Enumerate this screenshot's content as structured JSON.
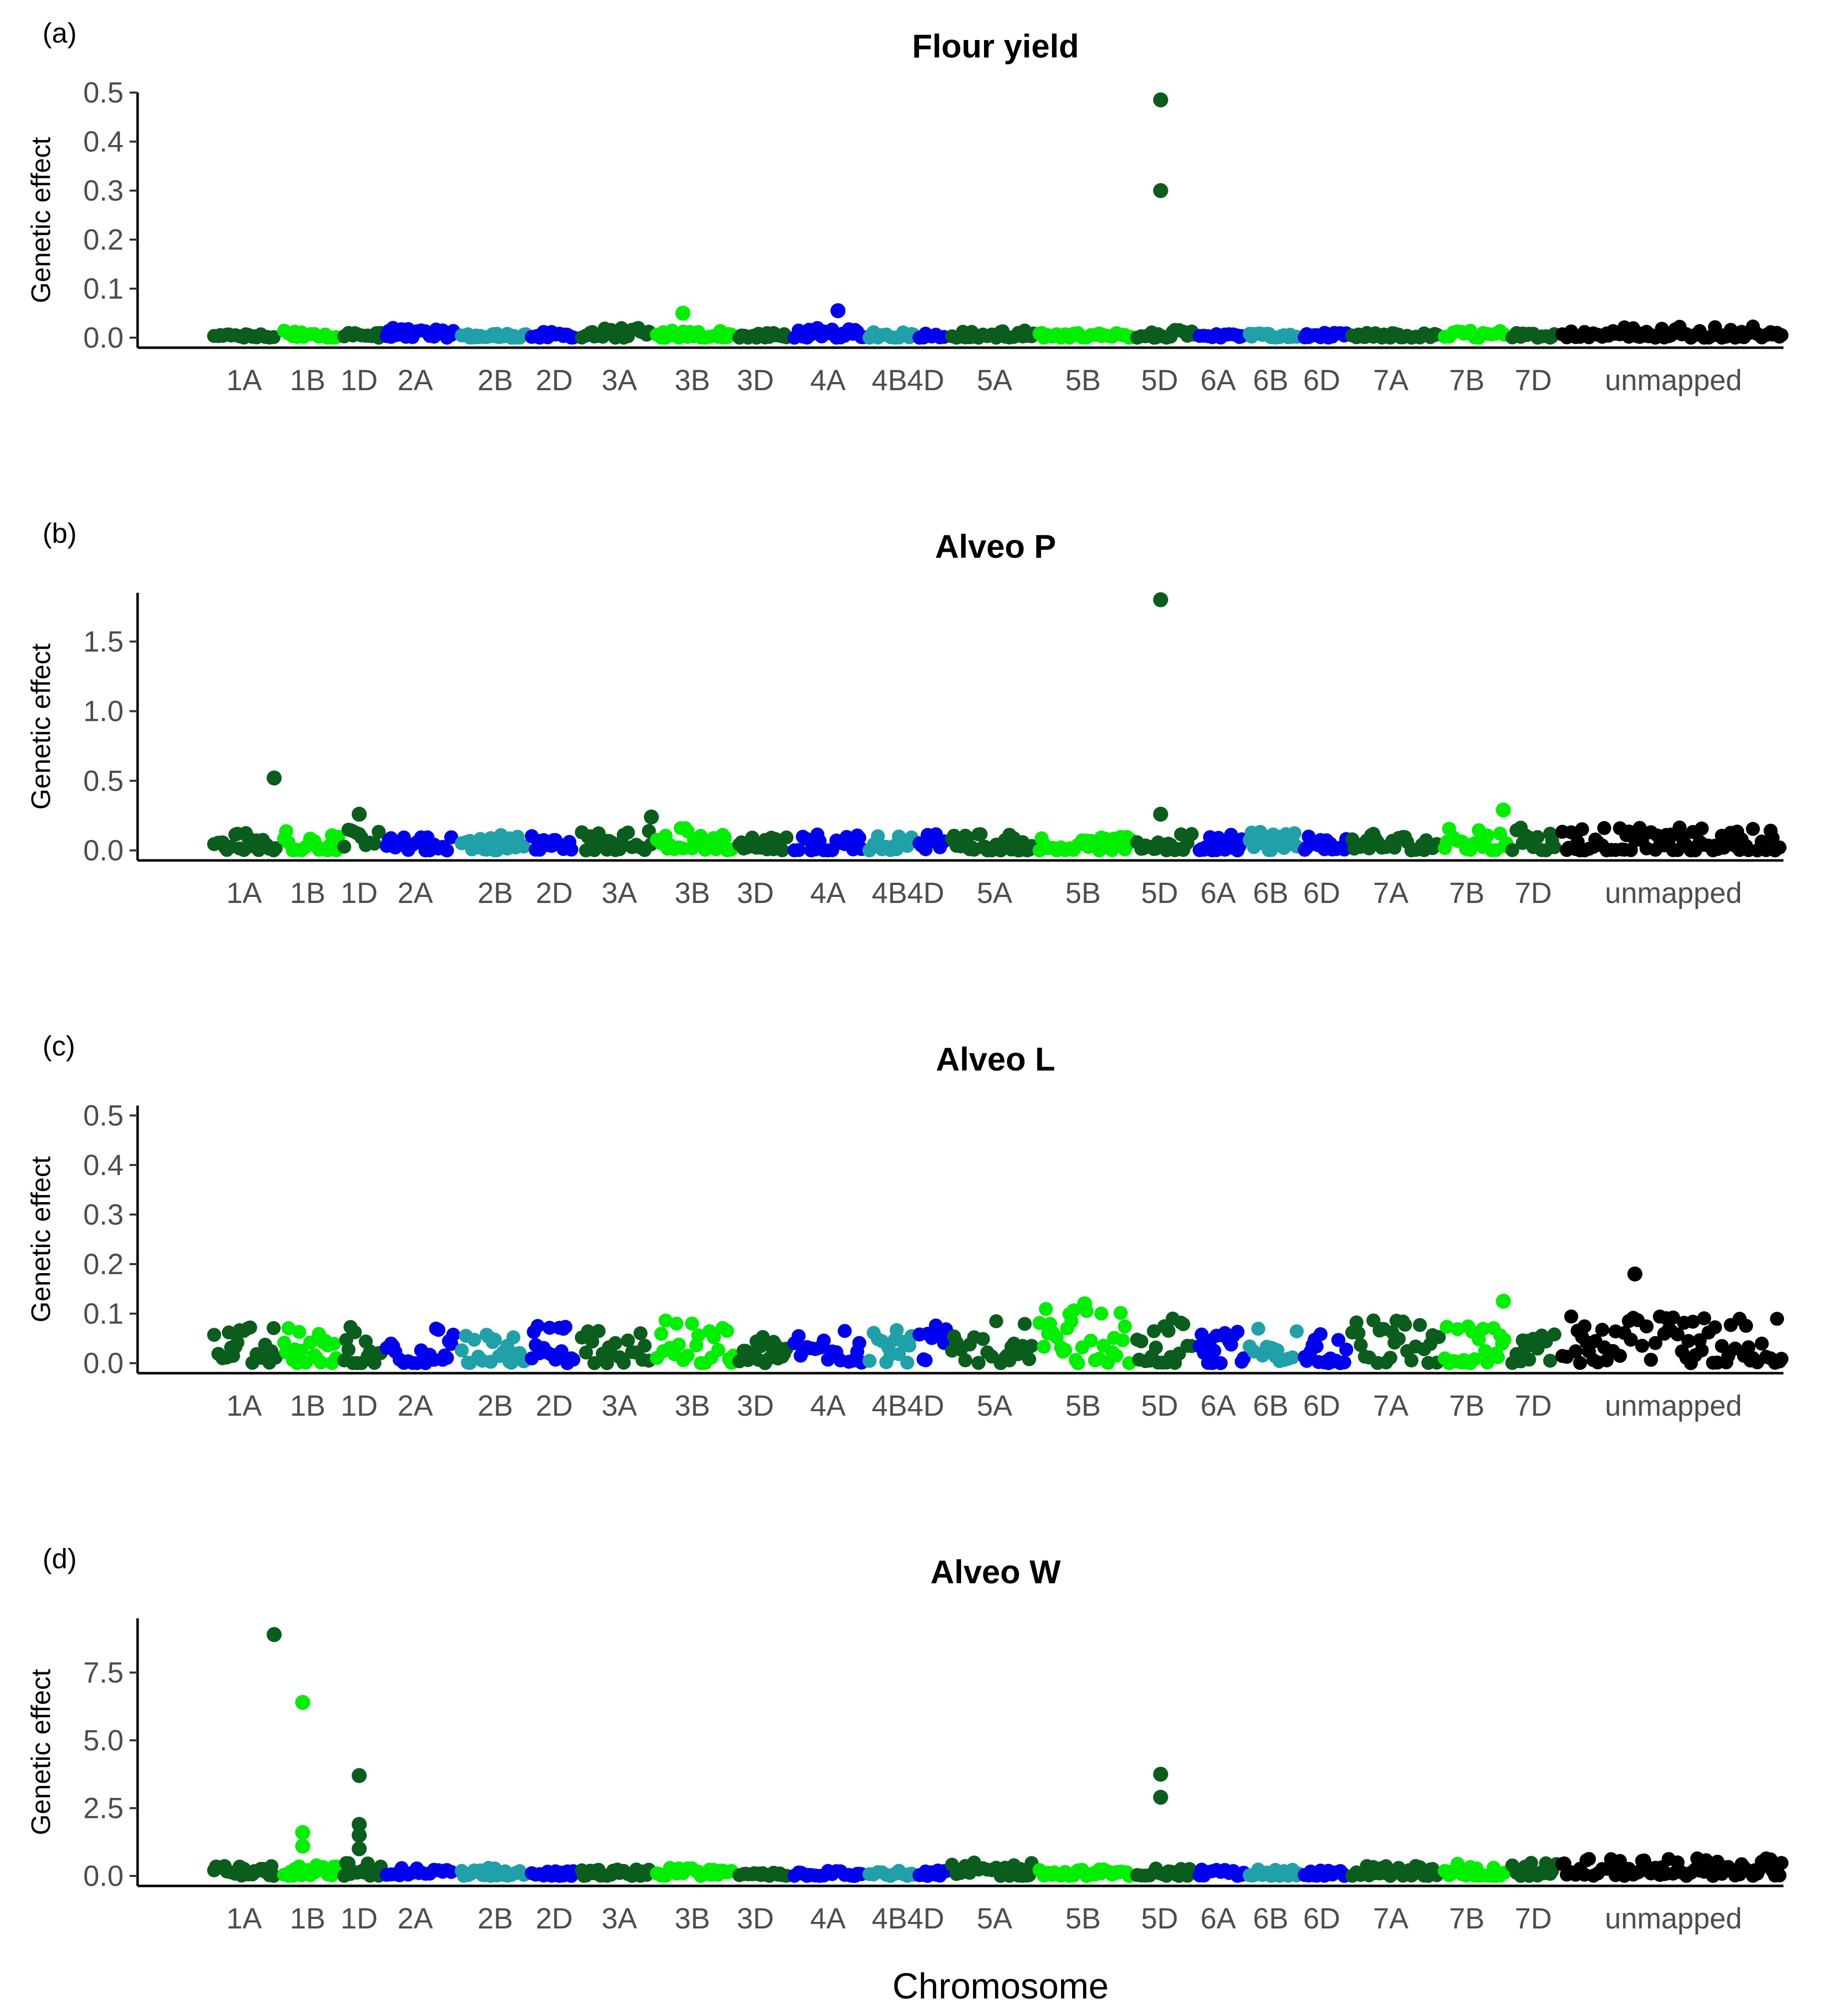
{
  "figure": {
    "xlabel": "Chromosome",
    "colors": {
      "dark_green": "#0b5d1e",
      "light_green": "#00ee00",
      "blue": "#0000ee",
      "teal": "#20a0a8",
      "black": "#000000"
    }
  },
  "chart_data": [
    {
      "type": "scatter",
      "panel": "(a)",
      "panel_letter": "a",
      "title": "Flour yield",
      "ylabel": "Genetic effect",
      "xlabel": "",
      "ylim": [
        0,
        0.5
      ],
      "yticks": [
        0.0,
        0.1,
        0.2,
        0.3,
        0.4,
        0.5
      ],
      "ytick_labels": [
        "0.0",
        "0.1",
        "0.2",
        "0.3",
        "0.4",
        "0.5"
      ],
      "categories": [
        "1A",
        "1B",
        "1D",
        "2A",
        "2B",
        "2D",
        "3A",
        "3B",
        "3D",
        "4A",
        "4B",
        "4D",
        "5A",
        "5B",
        "5D",
        "6A",
        "6B",
        "6D",
        "7A",
        "7B",
        "7D",
        "unmapped"
      ],
      "xtick_labels": [
        "1A",
        "1B",
        "1D",
        "2A",
        "2B",
        "2D",
        "3A",
        "3B",
        "3D",
        "4A",
        "4B4D",
        "5A",
        "5B",
        "5D",
        "6A",
        "6B",
        "6D",
        "7A",
        "7B",
        "7D",
        "unmapped"
      ],
      "baseline_max": [
        0.008,
        0.015,
        0.015,
        0.02,
        0.01,
        0.012,
        0.02,
        0.015,
        0.01,
        0.02,
        0.015,
        0.01,
        0.015,
        0.01,
        0.02,
        0.01,
        0.01,
        0.01,
        0.01,
        0.015,
        0.01,
        0.025
      ],
      "peaks": [
        {
          "chrom": "3B",
          "value": 0.05
        },
        {
          "chrom": "4A",
          "value": 0.055
        },
        {
          "chrom": "5D",
          "value": 0.3
        },
        {
          "chrom": "5D",
          "value": 0.485
        }
      ]
    },
    {
      "type": "scatter",
      "panel": "(b)",
      "panel_letter": "b",
      "title": "Alveo P",
      "ylabel": "Genetic effect",
      "xlabel": "",
      "ylim": [
        0,
        1.85
      ],
      "yticks": [
        0.0,
        0.5,
        1.0,
        1.5
      ],
      "ytick_labels": [
        "0.0",
        "0.5",
        "1.0",
        "1.5"
      ],
      "categories": [
        "1A",
        "1B",
        "1D",
        "2A",
        "2B",
        "2D",
        "3A",
        "3B",
        "3D",
        "4A",
        "4B",
        "4D",
        "5A",
        "5B",
        "5D",
        "6A",
        "6B",
        "6D",
        "7A",
        "7B",
        "7D",
        "unmapped"
      ],
      "xtick_labels": [
        "1A",
        "1B",
        "1D",
        "2A",
        "2B",
        "2D",
        "3A",
        "3B",
        "3D",
        "4A",
        "4B4D",
        "5A",
        "5B",
        "5D",
        "6A",
        "6B",
        "6D",
        "7A",
        "7B",
        "7D",
        "unmapped"
      ],
      "baseline_max": [
        0.13,
        0.15,
        0.15,
        0.1,
        0.13,
        0.12,
        0.15,
        0.17,
        0.1,
        0.12,
        0.12,
        0.13,
        0.14,
        0.1,
        0.12,
        0.13,
        0.15,
        0.1,
        0.12,
        0.16,
        0.17,
        0.17
      ],
      "peaks": [
        {
          "chrom": "1A",
          "value": 0.52
        },
        {
          "chrom": "1D",
          "value": 0.26
        },
        {
          "chrom": "3A",
          "value": 0.24
        },
        {
          "chrom": "5D",
          "value": 0.26
        },
        {
          "chrom": "5D",
          "value": 1.8
        },
        {
          "chrom": "7B",
          "value": 0.29
        }
      ]
    },
    {
      "type": "scatter",
      "panel": "(c)",
      "panel_letter": "c",
      "title": "Alveo L",
      "ylabel": "Genetic effect",
      "xlabel": "",
      "ylim": [
        0,
        0.52
      ],
      "yticks": [
        0.0,
        0.1,
        0.2,
        0.3,
        0.4,
        0.5
      ],
      "ytick_labels": [
        "0.0",
        "0.1",
        "0.2",
        "0.3",
        "0.4",
        "0.5"
      ],
      "categories": [
        "1A",
        "1B",
        "1D",
        "2A",
        "2B",
        "2D",
        "3A",
        "3B",
        "3D",
        "4A",
        "4B",
        "4D",
        "5A",
        "5B",
        "5D",
        "6A",
        "6B",
        "6D",
        "7A",
        "7B",
        "7D",
        "unmapped"
      ],
      "xtick_labels": [
        "1A",
        "1B",
        "1D",
        "2A",
        "2B",
        "2D",
        "3A",
        "3B",
        "3D",
        "4A",
        "4B4D",
        "5A",
        "5B",
        "5D",
        "6A",
        "6B",
        "6D",
        "7A",
        "7B",
        "7D",
        "unmapped"
      ],
      "baseline_max": [
        0.075,
        0.08,
        0.085,
        0.075,
        0.065,
        0.09,
        0.085,
        0.09,
        0.055,
        0.08,
        0.08,
        0.08,
        0.085,
        0.11,
        0.09,
        0.07,
        0.08,
        0.06,
        0.09,
        0.075,
        0.06,
        0.095
      ],
      "peaks": [
        {
          "chrom": "5B",
          "value": 0.12
        },
        {
          "chrom": "7B",
          "value": 0.125
        },
        {
          "chrom": "unmapped",
          "value": 0.18
        }
      ]
    },
    {
      "type": "scatter",
      "panel": "(d)",
      "panel_letter": "d",
      "title": "Alveo W",
      "ylabel": "Genetic effect",
      "xlabel": "Chromosome",
      "ylim": [
        0,
        9.5
      ],
      "yticks": [
        0.0,
        2.5,
        5.0,
        7.5
      ],
      "ytick_labels": [
        "0.0",
        "2.5",
        "5.0",
        "7.5"
      ],
      "categories": [
        "1A",
        "1B",
        "1D",
        "2A",
        "2B",
        "2D",
        "3A",
        "3B",
        "3D",
        "4A",
        "4B",
        "4D",
        "5A",
        "5B",
        "5D",
        "6A",
        "6B",
        "6D",
        "7A",
        "7B",
        "7D",
        "unmapped"
      ],
      "xtick_labels": [
        "1A",
        "1B",
        "1D",
        "2A",
        "2B",
        "2D",
        "3A",
        "3B",
        "3D",
        "4A",
        "4B4D",
        "5A",
        "5B",
        "5D",
        "6A",
        "6B",
        "6D",
        "7A",
        "7B",
        "7D",
        "unmapped"
      ],
      "baseline_max": [
        0.4,
        0.4,
        0.5,
        0.3,
        0.3,
        0.2,
        0.25,
        0.3,
        0.15,
        0.2,
        0.25,
        0.2,
        0.5,
        0.25,
        0.3,
        0.25,
        0.3,
        0.2,
        0.4,
        0.5,
        0.5,
        0.7
      ],
      "peaks": [
        {
          "chrom": "1A",
          "value": 8.9
        },
        {
          "chrom": "1B",
          "value": 6.4
        },
        {
          "chrom": "1B",
          "value": 1.6
        },
        {
          "chrom": "1B",
          "value": 1.1
        },
        {
          "chrom": "1D",
          "value": 3.7
        },
        {
          "chrom": "1D",
          "value": 1.9
        },
        {
          "chrom": "1D",
          "value": 1.5
        },
        {
          "chrom": "1D",
          "value": 1.0
        },
        {
          "chrom": "5D",
          "value": 3.75
        },
        {
          "chrom": "5D",
          "value": 2.9
        }
      ]
    }
  ]
}
